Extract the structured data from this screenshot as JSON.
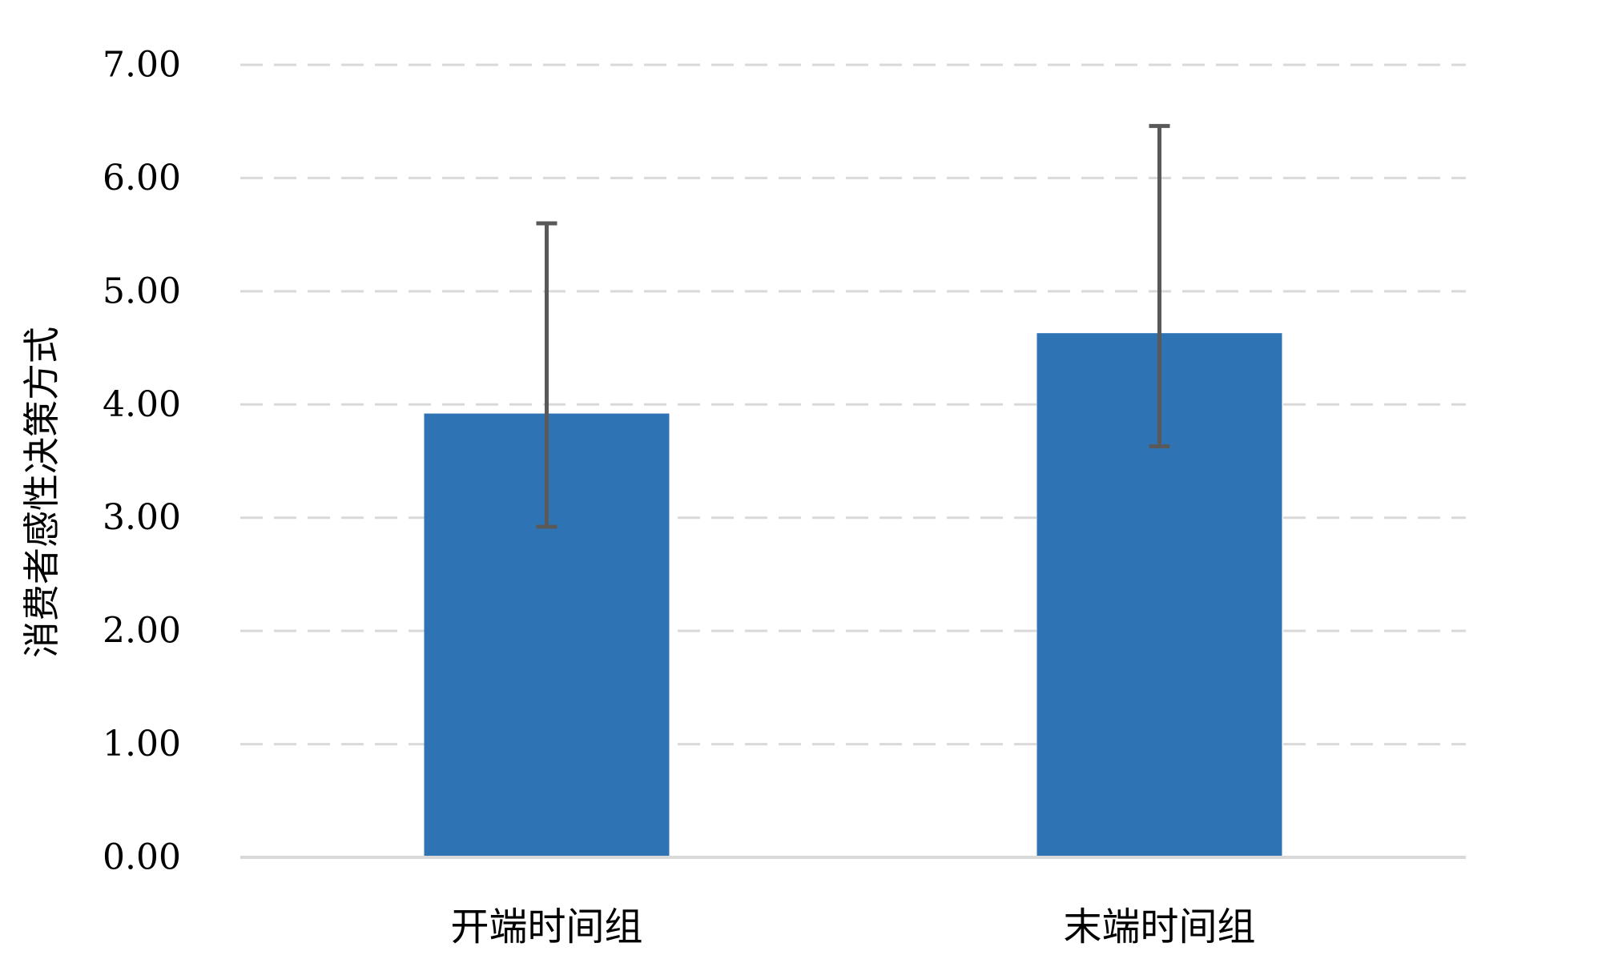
{
  "chart_data": {
    "type": "bar",
    "title": "",
    "xlabel": "",
    "ylabel": "消费者感性决策方式",
    "categories": [
      "开端时间组",
      "末端时间组"
    ],
    "series": [
      {
        "values": [
          3.92,
          4.63
        ],
        "error_low": [
          2.92,
          3.63
        ],
        "error_high": [
          5.6,
          6.46
        ]
      }
    ],
    "ylim": [
      0,
      7
    ],
    "yticks": [
      0,
      1,
      2,
      3,
      4,
      5,
      6,
      7
    ],
    "ytick_labels": [
      "0.00",
      "1.00",
      "2.00",
      "3.00",
      "4.00",
      "5.00",
      "6.00",
      "7.00"
    ],
    "grid": true,
    "grid_style": "dashed",
    "legend": "none",
    "colors": {
      "bar": "#2e74b5",
      "error_bar": "#595959",
      "grid": "#d9d9d9",
      "axis": "#d9d9d9"
    }
  }
}
